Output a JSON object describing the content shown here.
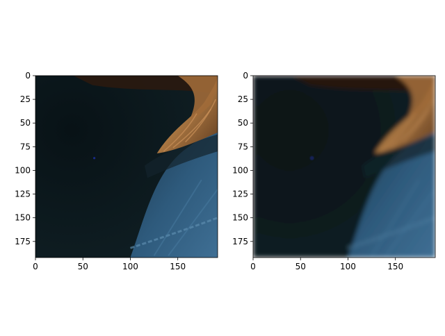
{
  "figure": {
    "panels": [
      {
        "id": "left",
        "variant": "sharp",
        "marker": {
          "x": 62,
          "y": 87,
          "color": "#1a2a8c"
        },
        "x_ticks": [
          "0",
          "50",
          "100",
          "150"
        ],
        "y_ticks": [
          "0",
          "25",
          "50",
          "75",
          "100",
          "125",
          "150",
          "175"
        ]
      },
      {
        "id": "right",
        "variant": "blurred",
        "marker": {
          "x": 62,
          "y": 87,
          "color": "#1a2a8c"
        },
        "x_ticks": [
          "0",
          "50",
          "100",
          "150"
        ],
        "y_ticks": [
          "0",
          "25",
          "50",
          "75",
          "100",
          "125",
          "150",
          "175"
        ]
      }
    ],
    "image_extent": [
      0,
      192,
      192,
      0
    ],
    "colors": {
      "background_dark": "#0c1a1e",
      "hair": "#a8743f",
      "denim": "#2e5a7c",
      "denim_light": "#5f8fb0"
    }
  }
}
